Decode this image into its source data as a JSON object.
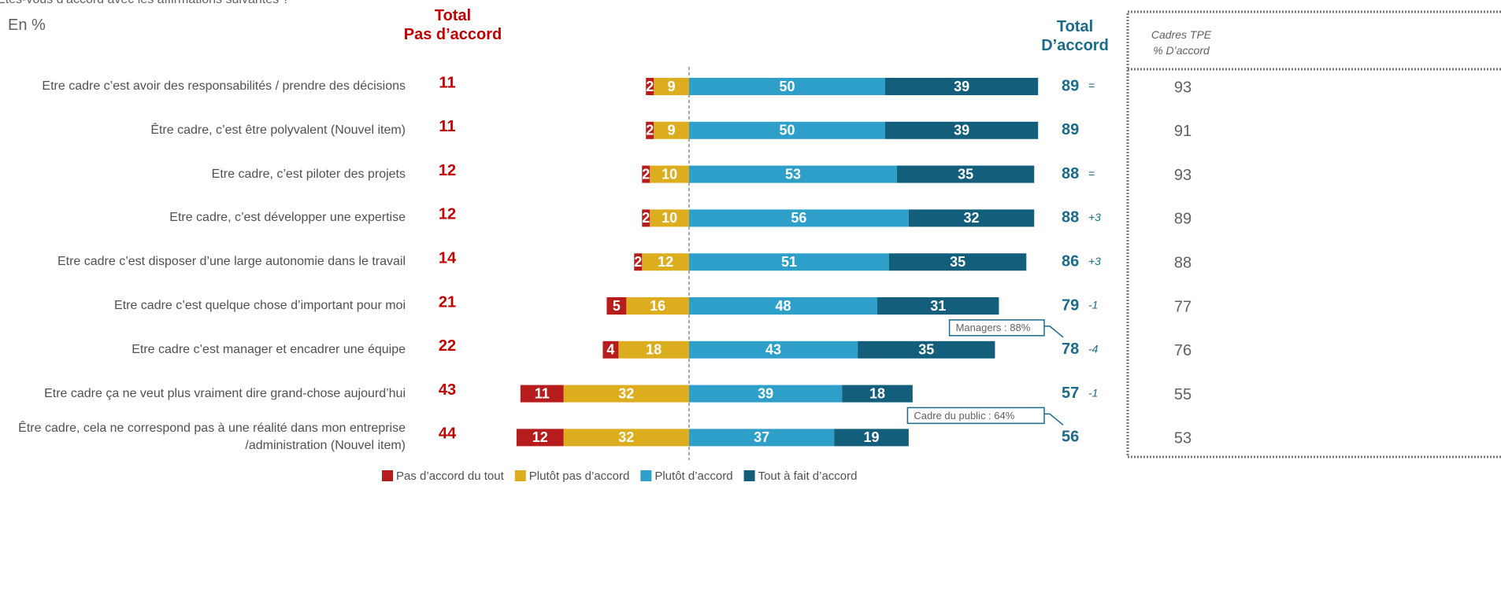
{
  "chart_data": {
    "type": "diverging_bar",
    "question": "Etes-vous d’accord avec les affirmations suivantes ?",
    "unit_note": "En %",
    "header_disagree": "Total\nPas d’accord",
    "header_agree": "Total\nD’accord",
    "header_tpe": "Cadres TPE\n% D’accord",
    "categories": [
      "Etre cadre c’est avoir des responsabilités / prendre des décisions",
      "Être cadre, c’est être polyvalent (Nouvel item)",
      "Etre cadre, c’est piloter des projets",
      "Etre cadre, c’est développer une expertise",
      "Etre cadre c’est disposer d’une large autonomie dans le travail",
      "Etre cadre c’est quelque chose d’important pour moi",
      "Etre cadre c’est manager et encadrer une équipe",
      "Etre cadre ça ne veut plus vraiment dire grand-chose aujourd’hui",
      "Être cadre, cela ne correspond pas à une réalité dans mon entreprise /administration (Nouvel item)"
    ],
    "series": [
      {
        "name": "Pas d’accord du tout",
        "color": "#b71c1c",
        "side": "left",
        "values": [
          2,
          2,
          2,
          2,
          2,
          5,
          4,
          11,
          12
        ]
      },
      {
        "name": "Plutôt pas d’accord",
        "color": "#dcad1e",
        "side": "left",
        "values": [
          9,
          9,
          10,
          10,
          12,
          16,
          18,
          32,
          32
        ]
      },
      {
        "name": "Plutôt d’accord",
        "color": "#2e9fc8",
        "side": "right",
        "values": [
          50,
          50,
          53,
          56,
          51,
          48,
          43,
          39,
          37
        ]
      },
      {
        "name": "Tout à fait d’accord",
        "color": "#135e7a",
        "side": "right",
        "values": [
          39,
          39,
          35,
          32,
          35,
          31,
          35,
          18,
          19
        ]
      }
    ],
    "total_disagree": [
      11,
      11,
      12,
      12,
      14,
      21,
      22,
      43,
      44
    ],
    "total_agree": [
      89,
      89,
      88,
      88,
      86,
      79,
      78,
      57,
      56
    ],
    "evolution": [
      "=",
      null,
      "=",
      "+3",
      "+3",
      "-1",
      "-4",
      "-1",
      null
    ],
    "tpe_agree": [
      93,
      91,
      93,
      89,
      88,
      77,
      76,
      55,
      53
    ],
    "annotations": [
      {
        "text": "Managers : 88%",
        "row": 6
      },
      {
        "text": "Cadre du public : 64%",
        "row": 8
      }
    ]
  }
}
